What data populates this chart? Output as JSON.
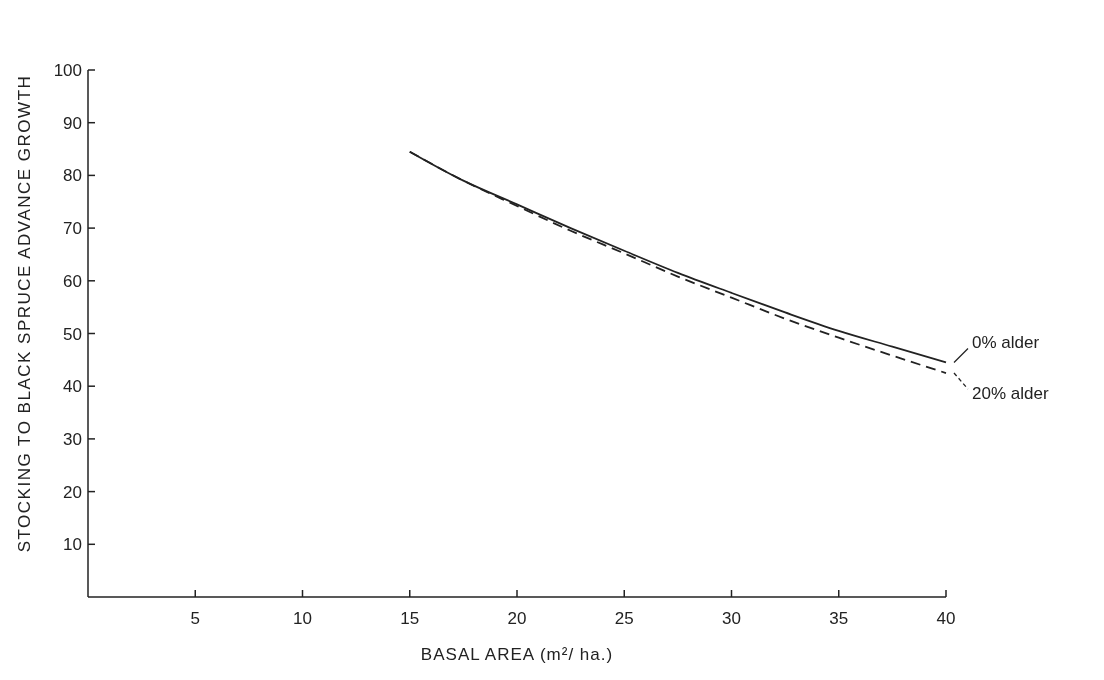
{
  "chart_data": {
    "type": "line",
    "xlabel": "BASAL AREA (m²/ ha.)",
    "ylabel": "STOCKING TO BLACK SPRUCE ADVANCE GROWTH",
    "x": [
      15,
      17.5,
      20,
      22.5,
      25,
      27.5,
      30,
      32.5,
      35,
      37.5,
      40
    ],
    "series": [
      {
        "name": "0% alder",
        "color": "#222222",
        "line_style": "solid",
        "values": [
          84.5,
          79,
          74.5,
          70,
          65.7,
          61.5,
          57.7,
          54,
          50.5,
          47.5,
          44.5
        ]
      },
      {
        "name": "20% alder",
        "color": "#222222",
        "line_style": "dashed",
        "values": [
          84.5,
          79,
          74.2,
          69.5,
          65.2,
          60.8,
          56.8,
          52.8,
          49.2,
          45.8,
          42.5
        ]
      }
    ],
    "xlim": [
      0,
      40
    ],
    "xticks": [
      5,
      10,
      15,
      20,
      25,
      30,
      35,
      40
    ],
    "ylim": [
      0,
      100
    ],
    "yticks": [
      10,
      20,
      30,
      40,
      50,
      60,
      70,
      80,
      90,
      100
    ],
    "grid": false,
    "legend": "right",
    "marker": "none"
  }
}
